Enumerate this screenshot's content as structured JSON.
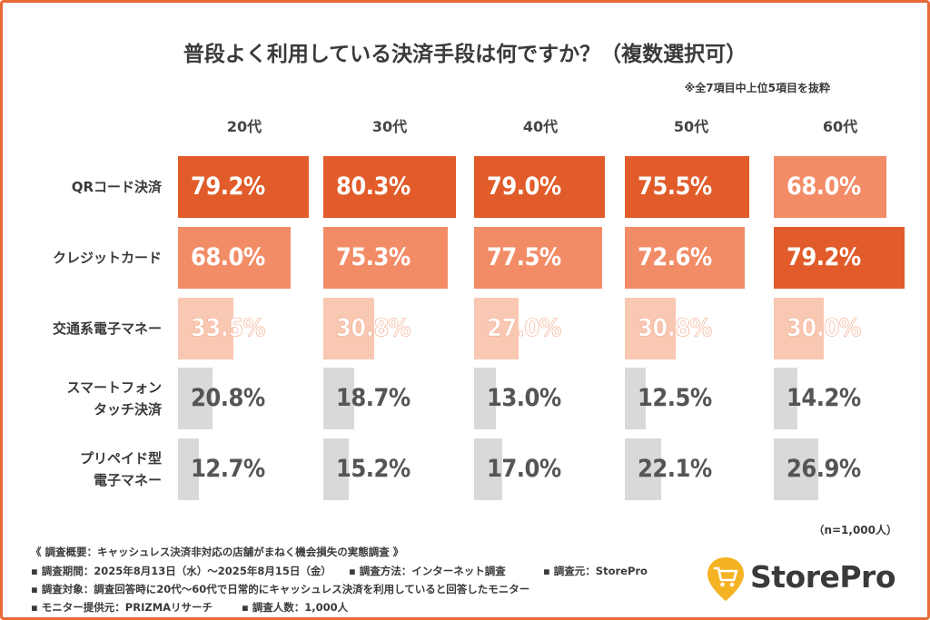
{
  "header": {
    "title": "普段よく利用している決済手段は何ですか？（複数選択可）",
    "note": "※全7項目中上位5項目を抜粋"
  },
  "chart_data": {
    "type": "bar",
    "categories": [
      "20代",
      "30代",
      "40代",
      "50代",
      "60代"
    ],
    "rows": [
      "QRコード決済",
      "クレジットカード",
      "交通系電子マネー",
      "スマートフォン\nタッチ決済",
      "プリペイド型\n電子マネー"
    ],
    "row_labels": [
      [
        "QRコード決済"
      ],
      [
        "クレジットカード"
      ],
      [
        "交通系電子マネー"
      ],
      [
        "スマートフォン",
        "タッチ決済"
      ],
      [
        "プリペイド型",
        "電子マネー"
      ]
    ],
    "series": [
      {
        "name": "QRコード決済",
        "values": [
          79.2,
          80.3,
          79.0,
          75.5,
          68.0
        ],
        "labels": [
          "79.2%",
          "80.3%",
          "79.0%",
          "75.5%",
          "68.0%"
        ]
      },
      {
        "name": "クレジットカード",
        "values": [
          68.0,
          75.3,
          77.5,
          72.6,
          79.2
        ],
        "labels": [
          "68.0%",
          "75.3%",
          "77.5%",
          "72.6%",
          "79.2%"
        ]
      },
      {
        "name": "交通系電子マネー",
        "values": [
          33.5,
          30.8,
          27.0,
          30.8,
          30.0
        ],
        "labels": [
          "33.5%",
          "30.8%",
          "27.0%",
          "30.8%",
          "30.0%"
        ]
      },
      {
        "name": "スマートフォンタッチ決済",
        "values": [
          20.8,
          18.7,
          13.0,
          12.5,
          14.2
        ],
        "labels": [
          "20.8%",
          "18.7%",
          "13.0%",
          "12.5%",
          "14.2%"
        ]
      },
      {
        "name": "プリペイド型電子マネー",
        "values": [
          12.7,
          15.2,
          17.0,
          22.1,
          26.9
        ],
        "labels": [
          "12.7%",
          "15.2%",
          "17.0%",
          "22.1%",
          "26.9%"
        ]
      }
    ],
    "ranks": [
      [
        1,
        1,
        1,
        1,
        2
      ],
      [
        2,
        2,
        2,
        2,
        1
      ],
      [
        3,
        3,
        3,
        3,
        3
      ],
      [
        4,
        4,
        5,
        5,
        5
      ],
      [
        5,
        5,
        4,
        4,
        4
      ]
    ],
    "colors": {
      "rank1": "#e15c2a",
      "rank2": "#f28c67",
      "rank3": "#f9c8b2",
      "other": "#d9d9d9"
    },
    "xlim": [
      0,
      80.3
    ]
  },
  "footer": {
    "n_count": "（n=1,000人）",
    "lines": [
      "《 調査概要：キャッシュレス決済非対応の店舗がまねく機会損失の実態調査 》",
      "▪ 調査期間：2025年8月13日（水）〜2025年8月15日（金）",
      "▪ 調査方法：インターネット調査",
      "▪ 調査元：StorePro",
      "▪ 調査対象：調査回答時に20代〜60代で日常的にキャッシュレス決済を利用していると回答したモニター",
      "▪ モニター提供元：PRIZMAリサーチ",
      "▪ 調査人数：1,000人"
    ]
  },
  "logo": {
    "text": "StorePro",
    "icon": "shopping-cart-pin-icon",
    "color": "#f5b324"
  }
}
